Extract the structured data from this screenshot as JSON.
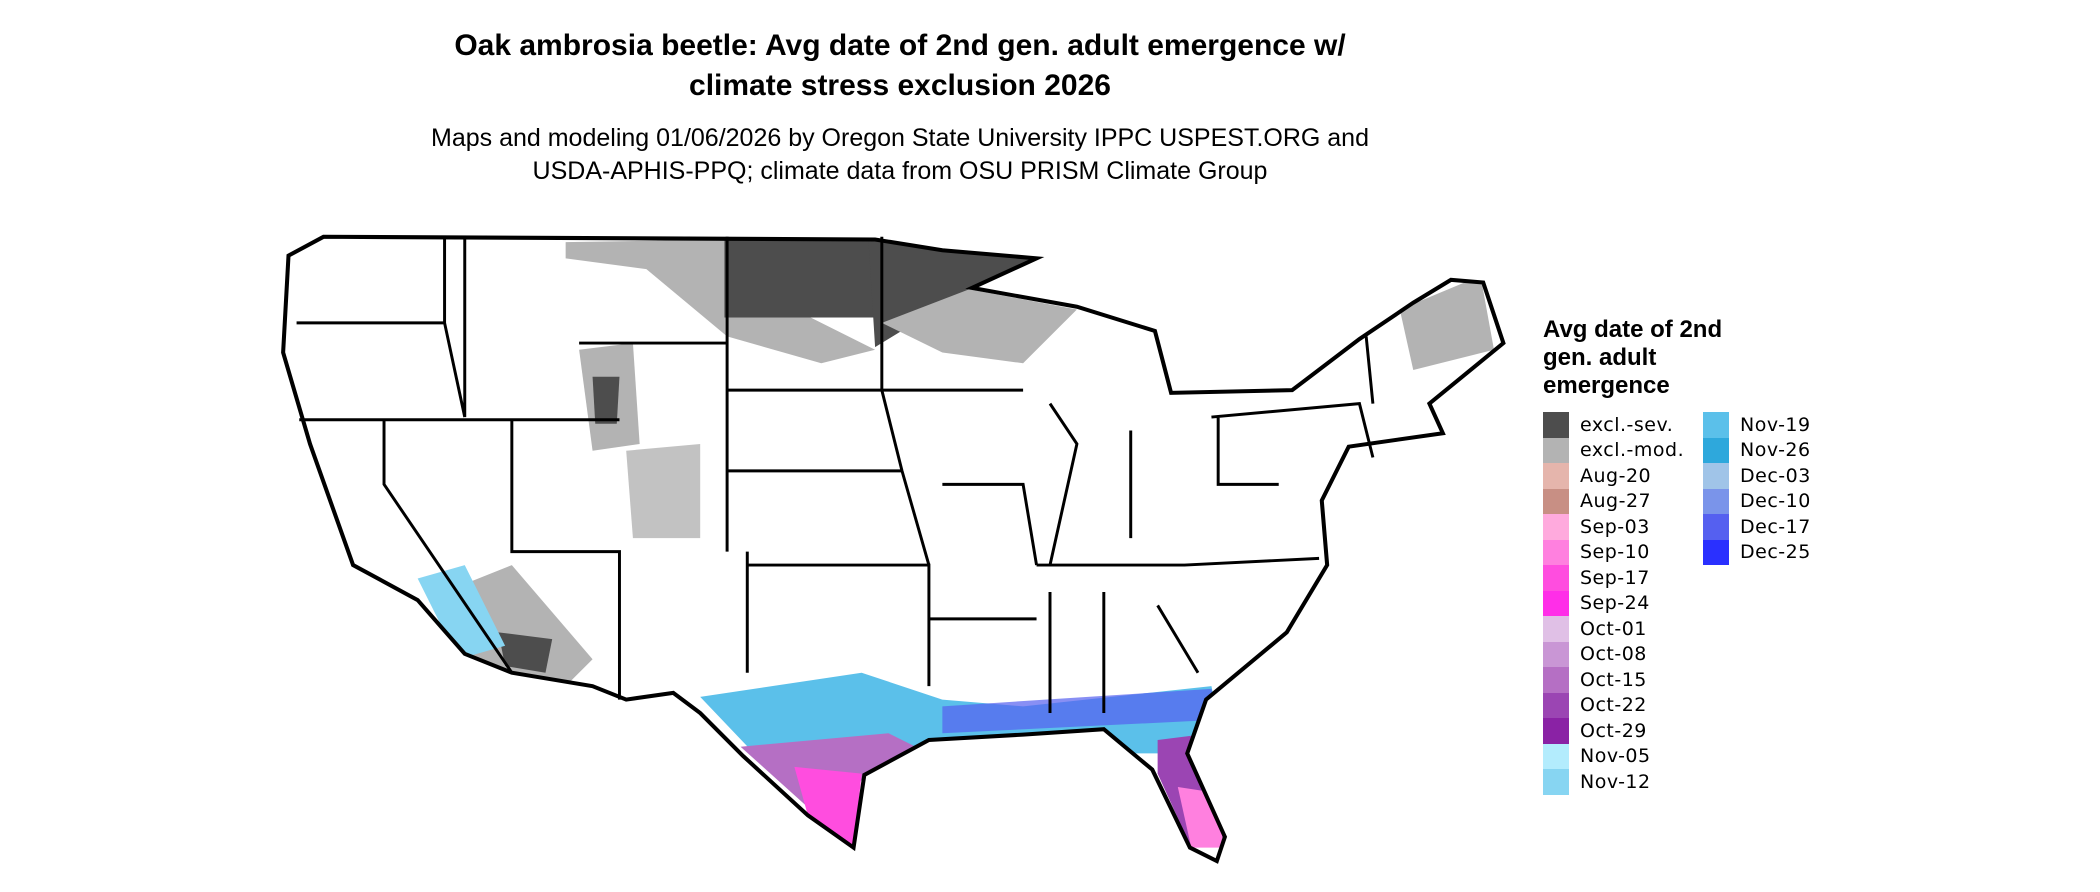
{
  "title_line1": "Oak ambrosia beetle: Avg date of 2nd gen. adult emergence w/",
  "title_line2": "climate stress exclusion 2026",
  "subtitle_line1": "Maps and modeling 01/06/2026 by Oregon State University IPPC USPEST.ORG and",
  "subtitle_line2": "USDA-APHIS-PPQ; climate data from OSU PRISM Climate Group",
  "legend": {
    "title": "Avg date of 2nd gen. adult emergence",
    "items": [
      {
        "label": "excl.-sev.",
        "color": "#4d4d4d"
      },
      {
        "label": "excl.-mod.",
        "color": "#b3b3b3"
      },
      {
        "label": "Aug-20",
        "color": "#e5b5ac"
      },
      {
        "label": "Aug-27",
        "color": "#c88f84"
      },
      {
        "label": "Sep-03",
        "color": "#ffaadd"
      },
      {
        "label": "Sep-10",
        "color": "#ff80df"
      },
      {
        "label": "Sep-17",
        "color": "#ff4ddf"
      },
      {
        "label": "Sep-24",
        "color": "#ff2ee8"
      },
      {
        "label": "Oct-01",
        "color": "#e0c0e6"
      },
      {
        "label": "Oct-08",
        "color": "#c996d5"
      },
      {
        "label": "Oct-15",
        "color": "#b56fc4"
      },
      {
        "label": "Oct-22",
        "color": "#9b45b3"
      },
      {
        "label": "Oct-29",
        "color": "#8a22a5"
      },
      {
        "label": "Nov-05",
        "color": "#b3ecfd"
      },
      {
        "label": "Nov-12",
        "color": "#87d5f2"
      },
      {
        "label": "Nov-19",
        "color": "#5bc0ea"
      },
      {
        "label": "Nov-26",
        "color": "#2ea8dc"
      },
      {
        "label": "Dec-03",
        "color": "#a0c4e8"
      },
      {
        "label": "Dec-10",
        "color": "#7a94ea"
      },
      {
        "label": "Dec-17",
        "color": "#5560f0"
      },
      {
        "label": "Dec-25",
        "color": "#2a30ff"
      }
    ]
  }
}
